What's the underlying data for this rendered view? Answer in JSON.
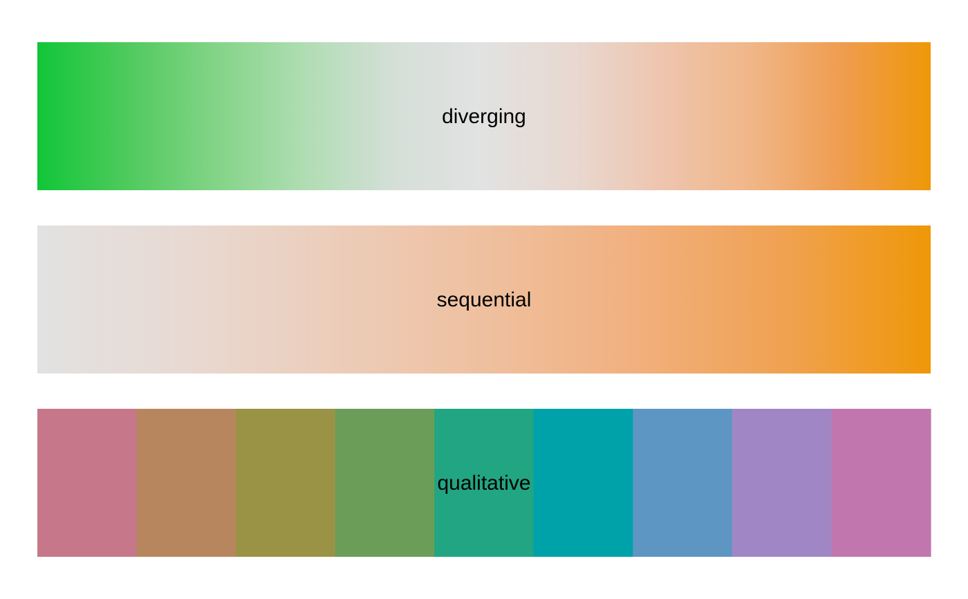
{
  "chart_data": {
    "type": "heatmap",
    "palettes": [
      {
        "label": "diverging",
        "kind": "gradient",
        "colors": [
          "#11C638",
          "#4FCA5D",
          "#83D487",
          "#B0DDB3",
          "#D5DFD8",
          "#E2E2E2",
          "#E8D8D0",
          "#EEC5AE",
          "#F0B687",
          "#EF9D50",
          "#EF9708"
        ]
      },
      {
        "label": "sequential",
        "kind": "gradient",
        "colors": [
          "#E2E2E2",
          "#E8D9D2",
          "#ECCDBA",
          "#EFC09F",
          "#F1B07F",
          "#F0A252",
          "#EF9708"
        ]
      },
      {
        "label": "qualitative",
        "kind": "discrete",
        "colors": [
          "#C6788A",
          "#B8865E",
          "#9A9345",
          "#6B9D58",
          "#22A582",
          "#00A2A9",
          "#5E96C3",
          "#A086C5",
          "#C177AD"
        ]
      }
    ]
  }
}
